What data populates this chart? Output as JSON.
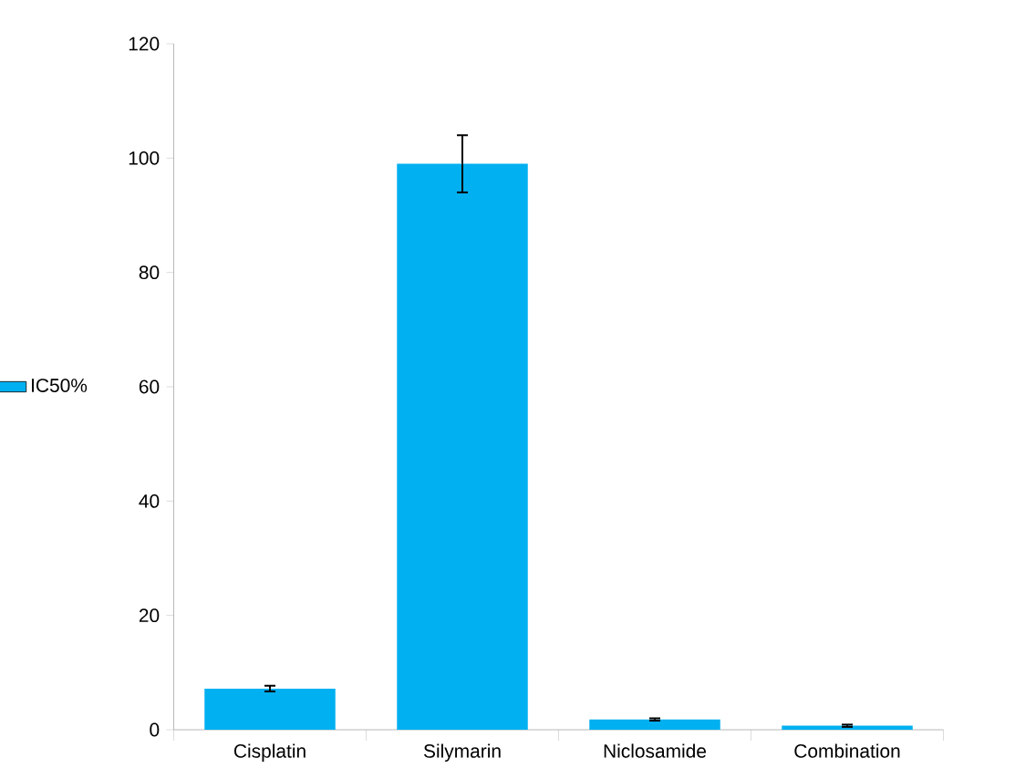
{
  "chart_data": {
    "type": "bar",
    "categories": [
      "Cisplatin",
      "Silymarin",
      "Niclosamide",
      "Combination"
    ],
    "series": [
      {
        "name": "IC50%",
        "color": "#00b0f0",
        "values": [
          7.2,
          99,
          1.8,
          0.7
        ],
        "errors": [
          0.5,
          5,
          0.2,
          0.2
        ]
      }
    ],
    "ylim": [
      0,
      120
    ],
    "yticks": [
      0,
      20,
      40,
      60,
      80,
      100,
      120
    ],
    "grid": false,
    "legend": "left"
  }
}
